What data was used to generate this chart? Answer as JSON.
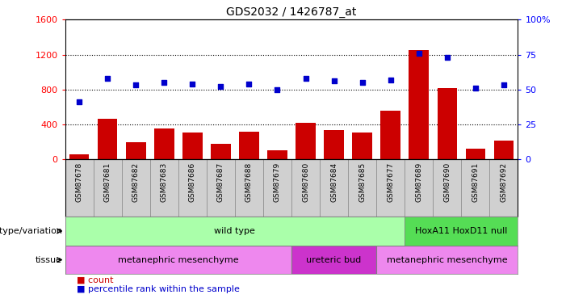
{
  "title": "GDS2032 / 1426787_at",
  "samples": [
    "GSM87678",
    "GSM87681",
    "GSM87682",
    "GSM87683",
    "GSM87686",
    "GSM87687",
    "GSM87688",
    "GSM87679",
    "GSM87680",
    "GSM87684",
    "GSM87685",
    "GSM87677",
    "GSM87689",
    "GSM87690",
    "GSM87691",
    "GSM87692"
  ],
  "counts": [
    55,
    460,
    195,
    355,
    305,
    175,
    315,
    100,
    420,
    330,
    305,
    555,
    1255,
    815,
    118,
    208
  ],
  "percentiles": [
    41,
    58,
    53,
    55,
    54,
    52,
    54,
    50,
    58,
    56,
    55,
    57,
    76,
    73,
    51,
    53
  ],
  "ylim_left": [
    0,
    1600
  ],
  "ylim_right": [
    0,
    100
  ],
  "yticks_left": [
    0,
    400,
    800,
    1200,
    1600
  ],
  "yticks_right": [
    0,
    25,
    50,
    75,
    100
  ],
  "bar_color": "#cc0000",
  "dot_color": "#0000cc",
  "genotype_groups": [
    {
      "label": "wild type",
      "start": 0,
      "end": 11,
      "color": "#aaffaa"
    },
    {
      "label": "HoxA11 HoxD11 null",
      "start": 12,
      "end": 15,
      "color": "#55dd55"
    }
  ],
  "tissue_groups": [
    {
      "label": "metanephric mesenchyme",
      "start": 0,
      "end": 7,
      "color": "#ee88ee"
    },
    {
      "label": "ureteric bud",
      "start": 8,
      "end": 10,
      "color": "#cc33cc"
    },
    {
      "label": "metanephric mesenchyme",
      "start": 11,
      "end": 15,
      "color": "#ee88ee"
    }
  ],
  "genotype_label": "genotype/variation",
  "tissue_label": "tissue",
  "legend_count_color": "#cc0000",
  "legend_pct_color": "#0000cc",
  "sample_bg_color": "#d0d0d0",
  "right_axis_ticks_labels": [
    "0",
    "25",
    "50",
    "75",
    "100%"
  ]
}
